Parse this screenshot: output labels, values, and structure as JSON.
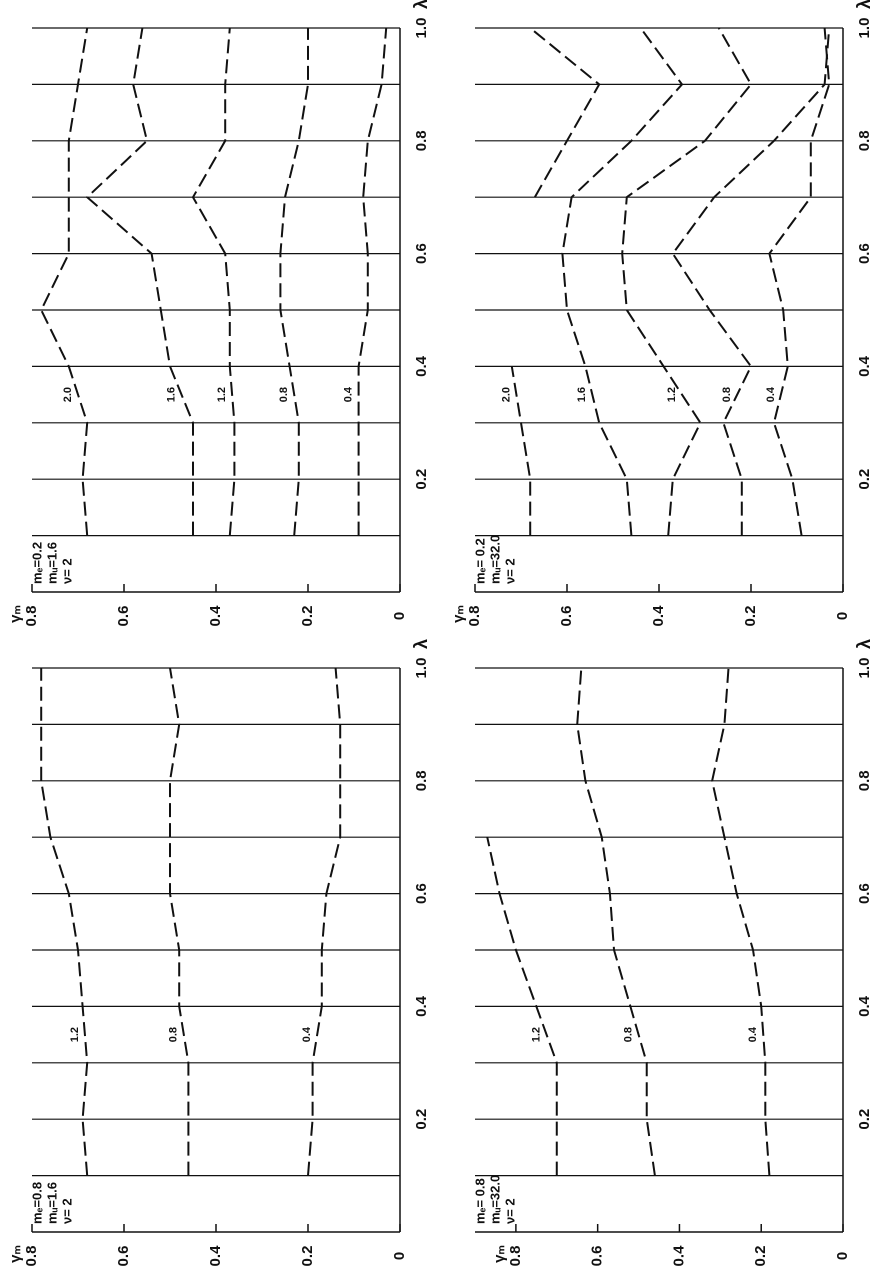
{
  "chart_data": [
    {
      "type": "line",
      "x_label": "λ",
      "y_label": "γₘ",
      "annotations": [
        "mₑ=0.2",
        "mᵤ=1.6",
        "ν= 2"
      ],
      "x": [
        0.1,
        0.2,
        0.3,
        0.4,
        0.5,
        0.6,
        0.7,
        0.8,
        0.9,
        1.0
      ],
      "series": [
        {
          "name": "2.0",
          "color": "#111111",
          "values": [
            0.68,
            0.69,
            0.68,
            0.72,
            0.78,
            0.72,
            0.72,
            0.72,
            0.7,
            0.68
          ]
        },
        {
          "name": "1.6",
          "color": "#111111",
          "values": [
            0.45,
            0.45,
            0.45,
            0.5,
            0.52,
            0.54,
            0.68,
            0.55,
            0.58,
            0.56
          ]
        },
        {
          "name": "1.2",
          "color": "#111111",
          "values": [
            0.37,
            0.36,
            0.36,
            0.37,
            0.37,
            0.38,
            0.45,
            0.38,
            0.38,
            0.37
          ]
        },
        {
          "name": "0.8",
          "color": "#111111",
          "values": [
            0.23,
            0.22,
            0.22,
            0.24,
            0.26,
            0.26,
            0.25,
            0.22,
            0.2,
            0.2
          ]
        },
        {
          "name": "0.4",
          "color": "#111111",
          "values": [
            0.09,
            0.09,
            0.09,
            0.09,
            0.07,
            0.07,
            0.08,
            0.07,
            0.04,
            0.03
          ]
        }
      ],
      "xlim": [
        0,
        1.0
      ],
      "ylim": [
        0,
        0.8
      ],
      "xticks": [
        0.2,
        0.4,
        0.6,
        0.8,
        {
          "value": 1,
          "label": "1.0"
        }
      ],
      "yticks": [
        0,
        0.2,
        0.4,
        0.6,
        0.8
      ],
      "xgrid": [
        0.1,
        0.2,
        0.3,
        0.4,
        0.5,
        0.6,
        0.7,
        0.8,
        0.9,
        1.0
      ]
    },
    {
      "type": "line",
      "x_label": "λ",
      "y_label": "γₘ",
      "annotations": [
        "mₑ= 0.2",
        "mᵤ=32.0",
        "ν= 2"
      ],
      "x": [
        0.1,
        0.2,
        0.3,
        0.4,
        0.5,
        0.6,
        0.7,
        0.8,
        0.9,
        1.0
      ],
      "series": [
        {
          "name": "2.0",
          "color": "#111111",
          "values": [
            0.68,
            0.68,
            0.7,
            0.72,
            null,
            null,
            0.67,
            0.6,
            0.53,
            0.68
          ]
        },
        {
          "name": "1.6",
          "color": "#111111",
          "values": [
            0.46,
            0.47,
            0.53,
            0.56,
            0.6,
            0.61,
            0.59,
            0.46,
            0.35,
            0.44
          ]
        },
        {
          "name": "1.2",
          "color": "#111111",
          "values": [
            0.38,
            0.37,
            0.31,
            0.39,
            0.47,
            0.48,
            0.47,
            0.3,
            0.2,
            0.27
          ]
        },
        {
          "name": "0.8",
          "color": "#111111",
          "values": [
            0.22,
            0.22,
            0.26,
            0.2,
            0.29,
            0.37,
            0.28,
            0.15,
            0.04,
            0.03
          ]
        },
        {
          "name": "0.4",
          "color": "#111111",
          "values": [
            0.09,
            0.11,
            0.15,
            0.12,
            0.13,
            0.16,
            0.07,
            0.07,
            0.03,
            0.04
          ]
        }
      ],
      "xlim": [
        0,
        1.0
      ],
      "ylim": [
        0,
        0.8
      ],
      "xticks": [
        0.2,
        0.4,
        0.6,
        0.8,
        {
          "value": 1,
          "label": "1.0"
        }
      ],
      "yticks": [
        0,
        0.2,
        0.4,
        0.6,
        0.8
      ],
      "xgrid": [
        0.1,
        0.2,
        0.3,
        0.4,
        0.5,
        0.6,
        0.7,
        0.8,
        0.9,
        1.0
      ]
    },
    {
      "type": "line",
      "x_label": "λ",
      "y_label": "γₘ",
      "annotations": [
        "mₑ=0.8",
        "mᵤ=1.6",
        "ν= 2"
      ],
      "x": [
        0.1,
        0.2,
        0.3,
        0.4,
        0.5,
        0.6,
        0.7,
        0.8,
        0.9,
        1.0
      ],
      "series": [
        {
          "name": "1.2",
          "color": "#111111",
          "values": [
            0.68,
            0.69,
            0.68,
            0.69,
            0.7,
            0.72,
            0.76,
            0.78,
            0.78,
            0.78
          ]
        },
        {
          "name": "0.8",
          "color": "#111111",
          "values": [
            0.46,
            0.46,
            0.46,
            0.48,
            0.48,
            0.5,
            0.5,
            0.5,
            0.48,
            0.5
          ]
        },
        {
          "name": "0.4",
          "color": "#111111",
          "values": [
            0.2,
            0.19,
            0.19,
            0.17,
            0.17,
            0.16,
            0.13,
            0.13,
            0.13,
            0.14
          ]
        }
      ],
      "xlim": [
        0,
        1.0
      ],
      "ylim": [
        0,
        0.8
      ],
      "xticks": [
        0.2,
        0.4,
        0.6,
        0.8,
        {
          "value": 1,
          "label": "1.0"
        }
      ],
      "yticks": [
        0,
        0.2,
        0.4,
        0.6,
        0.8
      ],
      "xgrid": [
        0.1,
        0.2,
        0.3,
        0.4,
        0.5,
        0.6,
        0.7,
        0.8,
        0.9,
        1.0
      ]
    },
    {
      "type": "line",
      "x_label": "λ",
      "y_label": "γₘ",
      "annotations": [
        "mₑ= 0.8",
        "mᵤ=32.0",
        "ν= 2"
      ],
      "x": [
        0.1,
        0.2,
        0.3,
        0.4,
        0.5,
        0.6,
        0.7,
        0.8,
        0.9,
        1.0
      ],
      "series": [
        {
          "name": "1.2",
          "color": "#111111",
          "values": [
            0.7,
            0.7,
            0.7,
            0.75,
            0.8,
            0.84,
            0.87,
            null,
            null,
            null
          ]
        },
        {
          "name": "0.8",
          "color": "#111111",
          "values": [
            0.46,
            0.48,
            0.48,
            0.52,
            0.56,
            0.57,
            0.59,
            0.63,
            0.65,
            0.64
          ]
        },
        {
          "name": "0.4",
          "color": "#111111",
          "values": [
            0.18,
            0.19,
            0.19,
            0.2,
            0.22,
            0.26,
            0.29,
            0.32,
            0.29,
            0.28
          ]
        }
      ],
      "xlim": [
        0,
        1.0
      ],
      "ylim": [
        0,
        0.9
      ],
      "xticks": [
        0.2,
        0.4,
        0.6,
        0.8,
        {
          "value": 1,
          "label": "1.0"
        }
      ],
      "yticks": [
        0,
        0.2,
        0.4,
        0.6,
        0.8
      ],
      "xgrid": [
        0.1,
        0.2,
        0.3,
        0.4,
        0.5,
        0.6,
        0.7,
        0.8,
        0.9,
        1.0
      ]
    }
  ]
}
